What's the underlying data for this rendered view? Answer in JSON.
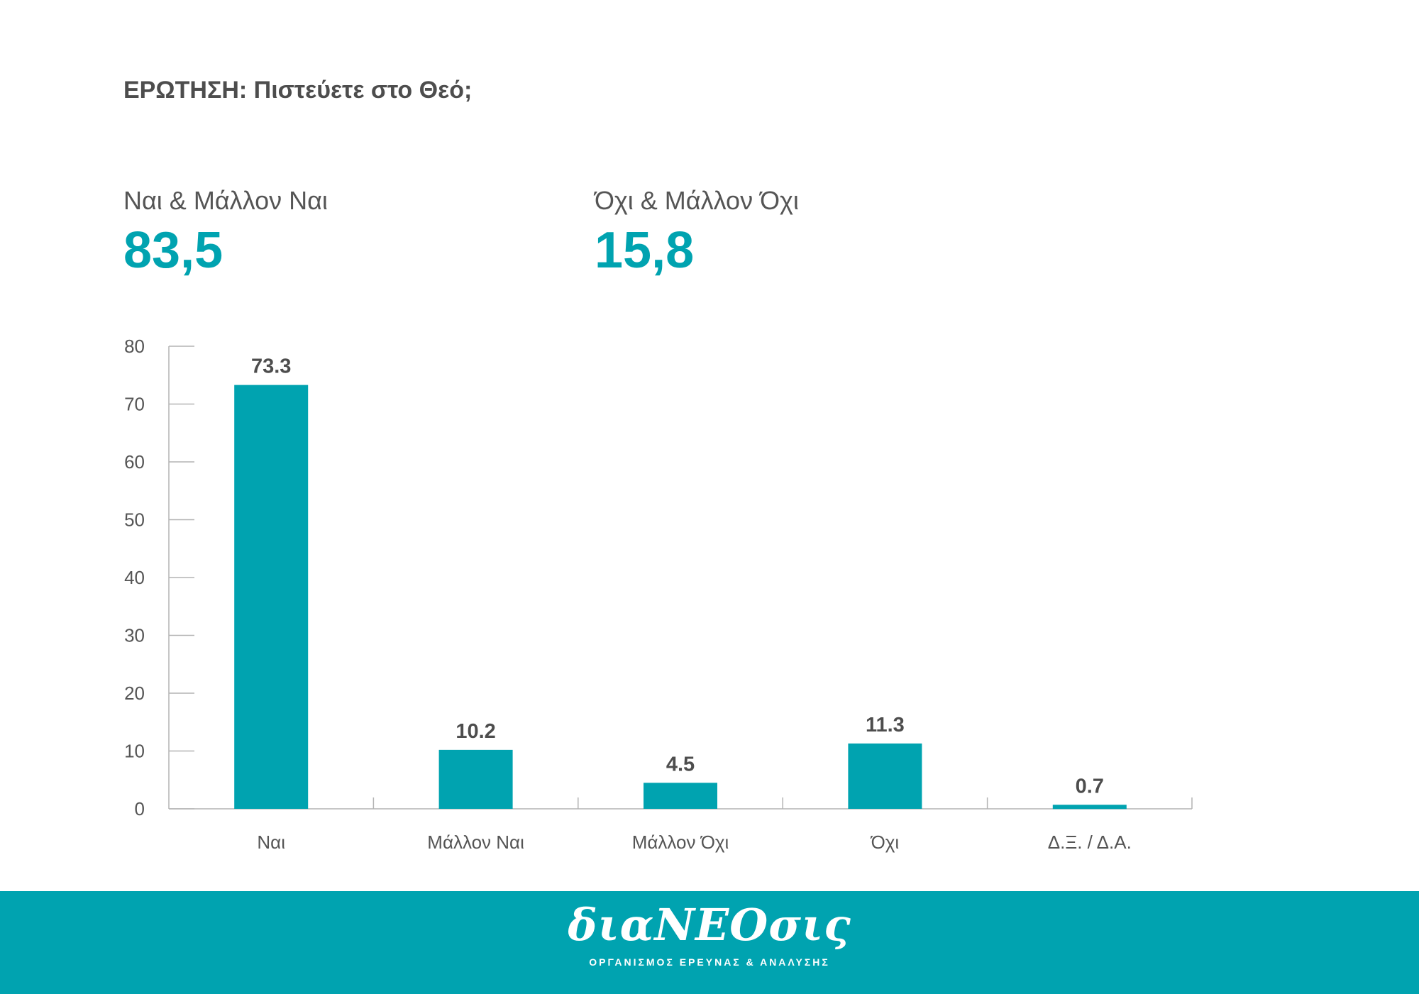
{
  "question": "ΕΡΩΤΗΣΗ: Πιστεύετε στο Θεό;",
  "summary": {
    "yes": {
      "label": "Ναι & Μάλλον Ναι",
      "value": "83,5"
    },
    "no": {
      "label": "Όχι & Μάλλον Όχι",
      "value": "15,8"
    }
  },
  "colors": {
    "accent": "#00a3b0",
    "text": "#4d4d4d",
    "axis": "#b3b3b3",
    "footer_bg": "#00a3b0"
  },
  "chart_data": {
    "type": "bar",
    "categories": [
      "Ναι",
      "Μάλλον Ναι",
      "Μάλλον Όχι",
      "Όχι",
      "Δ.Ξ. / Δ.Α."
    ],
    "values": [
      73.3,
      10.2,
      4.5,
      11.3,
      0.7
    ],
    "value_labels": [
      "73.3",
      "10.2",
      "4.5",
      "11.3",
      "0.7"
    ],
    "ylim": [
      0,
      80
    ],
    "yticks": [
      0,
      10,
      20,
      30,
      40,
      50,
      60,
      70,
      80
    ],
    "grid": false,
    "xlabel": "",
    "ylabel": ""
  },
  "footer": {
    "logo_text": "διαΝΕΟσις",
    "tagline": "ΟΡΓΑΝΙΣΜΟΣ ΕΡΕΥΝΑΣ & ΑΝΑΛΥΣΗΣ"
  }
}
